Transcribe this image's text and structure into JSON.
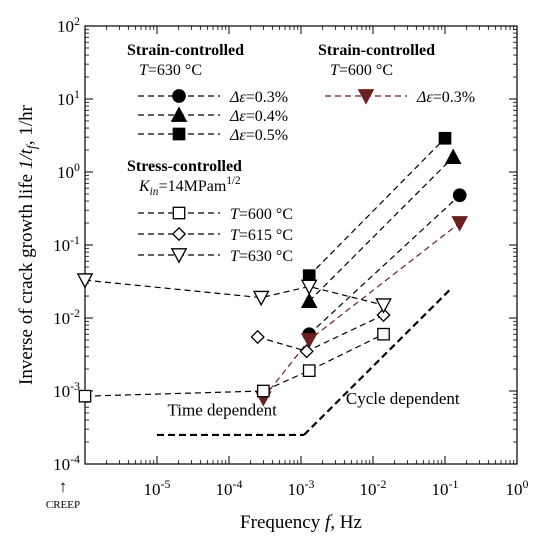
{
  "chart_data": {
    "type": "scatter",
    "xlabel": "Frequency f, Hz",
    "ylabel": "Inverse of crack growth life 1/t_f , 1/hr",
    "xscale": "log",
    "yscale": "log",
    "xlim": [
      1e-06,
      1
    ],
    "ylim": [
      0.0001,
      100
    ],
    "x_tick_labels": [
      "10^-5",
      "10^-4",
      "10^-3",
      "10^-2",
      "10^-1",
      "10^0"
    ],
    "y_tick_labels": [
      "10^-4",
      "10^-3",
      "10^-2",
      "10^-1",
      "10^0",
      "10^1",
      "10^2"
    ],
    "creep_label": "CREEP",
    "creep_arrow": "↑",
    "legend": {
      "strain_630": {
        "title": "Strain-controlled",
        "subtitle": "T=630 °C"
      },
      "strain_600": {
        "title": "Strain-controlled",
        "subtitle": "T=600 °C"
      },
      "stress": {
        "title": "Stress-controlled",
        "subtitle": "K_in=14MPam^1/2"
      }
    },
    "series": [
      {
        "key": "s630_03",
        "label": "Δε=0.3%",
        "group": "strain_630",
        "marker": "circle-filled",
        "color": "#000000",
        "points": [
          [
            0.0013,
            0.006
          ],
          [
            0.16,
            0.48
          ]
        ]
      },
      {
        "key": "s630_04",
        "label": "Δε=0.4%",
        "group": "strain_630",
        "marker": "triangle-up-filled",
        "color": "#000000",
        "points": [
          [
            0.0013,
            0.017
          ],
          [
            0.13,
            1.6
          ]
        ]
      },
      {
        "key": "s630_05",
        "label": "Δε=0.5%",
        "group": "strain_630",
        "marker": "square-filled",
        "color": "#000000",
        "points": [
          [
            0.0013,
            0.038
          ],
          [
            0.1,
            2.9
          ]
        ]
      },
      {
        "key": "s600_03",
        "label": "Δε=0.3%",
        "group": "strain_600",
        "marker": "triangle-down-filled",
        "color": "#6b1f1f",
        "points": [
          [
            0.0003,
            0.0008
          ],
          [
            0.0013,
            0.005
          ],
          [
            0.16,
            0.2
          ]
        ]
      },
      {
        "key": "k600",
        "label": "T=600 °C",
        "group": "stress",
        "marker": "square-open",
        "color": "#000000",
        "points": [
          [
            1e-06,
            0.00085
          ],
          [
            0.0003,
            0.001
          ],
          [
            0.0013,
            0.0019
          ],
          [
            0.014,
            0.006
          ]
        ]
      },
      {
        "key": "k615",
        "label": "T=615 °C",
        "group": "stress",
        "marker": "diamond-open",
        "color": "#000000",
        "points": [
          [
            0.00025,
            0.0055
          ],
          [
            0.0012,
            0.0035
          ],
          [
            0.014,
            0.011
          ]
        ]
      },
      {
        "key": "k630",
        "label": "T=630 °C",
        "group": "stress",
        "marker": "triangle-down-open",
        "color": "#000000",
        "points": [
          [
            1e-06,
            0.033
          ],
          [
            0.00028,
            0.019
          ],
          [
            0.0013,
            0.027
          ],
          [
            0.014,
            0.015
          ]
        ]
      }
    ],
    "annotations": {
      "time_dependent": {
        "text": "Time dependent",
        "line": [
          [
            1e-05,
            0.00025
          ],
          [
            0.0011,
            0.00025
          ]
        ]
      },
      "cycle_dependent": {
        "text": "Cycle dependent",
        "line": [
          [
            0.0011,
            0.00025
          ],
          [
            0.12,
            0.025
          ]
        ]
      }
    }
  }
}
